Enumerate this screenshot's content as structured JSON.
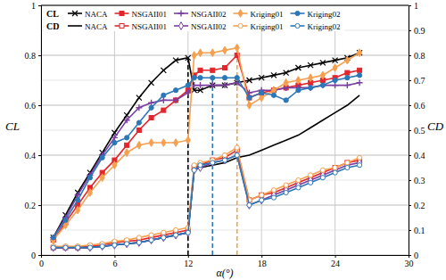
{
  "chart_data": {
    "type": "line",
    "x_label": "α(°)",
    "y_label": "CL",
    "y2_label": "CD",
    "x": [
      1,
      2,
      3,
      4,
      5,
      6,
      7,
      8,
      9,
      10,
      11,
      12,
      12.5,
      13,
      14,
      15,
      16,
      17,
      18,
      19,
      20,
      21,
      22,
      23,
      24,
      25,
      26
    ],
    "xlim": [
      0,
      30
    ],
    "xticks": [
      0,
      6,
      12,
      18,
      24,
      30
    ],
    "ylim": [
      0,
      1
    ],
    "yticks": [
      0,
      0.2,
      0.4,
      0.6,
      0.8,
      1
    ],
    "y2lim": [
      0,
      1
    ],
    "y2ticks": [
      0,
      0.1,
      0.2,
      0.3,
      0.4,
      0.5,
      0.6,
      0.7,
      0.8,
      0.9,
      1
    ],
    "grid": true,
    "legend": "top-left",
    "series": [
      {
        "name": "NACA",
        "color": "#000000",
        "marker": "x",
        "line_style": "solid",
        "values": [
          0.07,
          0.16,
          0.25,
          0.33,
          0.41,
          0.49,
          0.56,
          0.63,
          0.69,
          0.74,
          0.78,
          0.79,
          0.66,
          0.66,
          0.68,
          0.68,
          0.69,
          0.7,
          0.71,
          0.72,
          0.73,
          0.75,
          0.76,
          0.77,
          0.78,
          0.79,
          0.81
        ]
      },
      {
        "name": "NSGAII01",
        "color": "#e3262c",
        "marker": "square",
        "line_style": "solid",
        "values": [
          0.06,
          0.13,
          0.2,
          0.27,
          0.33,
          0.38,
          0.44,
          0.5,
          0.55,
          0.58,
          0.62,
          0.66,
          0.72,
          0.74,
          0.74,
          0.75,
          0.8,
          0.63,
          0.65,
          0.66,
          0.67,
          0.68,
          0.69,
          0.7,
          0.71,
          0.73,
          0.74
        ]
      },
      {
        "name": "NSGAII02",
        "color": "#7a3fa0",
        "marker": "plus",
        "line_style": "solid",
        "values": [
          0.07,
          0.15,
          0.24,
          0.32,
          0.4,
          0.47,
          0.54,
          0.59,
          0.61,
          0.62,
          0.62,
          0.65,
          0.68,
          0.68,
          0.68,
          0.68,
          0.69,
          0.65,
          0.66,
          0.66,
          0.67,
          0.67,
          0.67,
          0.68,
          0.68,
          0.68,
          0.69
        ]
      },
      {
        "name": "Kriging01",
        "color": "#f5a04f",
        "marker": "diamond",
        "line_style": "solid",
        "values": [
          0.06,
          0.12,
          0.18,
          0.25,
          0.31,
          0.36,
          0.41,
          0.44,
          0.45,
          0.45,
          0.45,
          0.46,
          0.8,
          0.81,
          0.81,
          0.82,
          0.83,
          0.6,
          0.63,
          0.66,
          0.69,
          0.7,
          0.71,
          0.72,
          0.75,
          0.78,
          0.81
        ]
      },
      {
        "name": "Kriging02",
        "color": "#2b78b8",
        "marker": "circle",
        "line_style": "solid",
        "values": [
          0.07,
          0.14,
          0.22,
          0.31,
          0.39,
          0.45,
          0.47,
          0.53,
          0.59,
          0.64,
          0.66,
          0.68,
          0.71,
          0.71,
          0.71,
          0.71,
          0.71,
          0.63,
          0.65,
          0.64,
          0.62,
          0.66,
          0.67,
          0.68,
          0.7,
          0.71,
          0.72
        ]
      },
      {
        "name": "NACA",
        "color": "#000000",
        "marker": "none",
        "line_style": "solid",
        "axis": "y2",
        "values": [
          0.03,
          0.03,
          0.03,
          0.03,
          0.035,
          0.04,
          0.045,
          0.05,
          0.06,
          0.07,
          0.08,
          0.09,
          0.34,
          0.35,
          0.36,
          0.37,
          0.39,
          0.4,
          0.42,
          0.44,
          0.46,
          0.48,
          0.51,
          0.54,
          0.57,
          0.6,
          0.64
        ]
      },
      {
        "name": "NSGAII01",
        "color": "#e3262c",
        "marker": "square-open",
        "line_style": "solid",
        "axis": "y2",
        "values": [
          0.03,
          0.03,
          0.03,
          0.035,
          0.04,
          0.05,
          0.055,
          0.06,
          0.07,
          0.08,
          0.09,
          0.1,
          0.35,
          0.36,
          0.38,
          0.39,
          0.42,
          0.22,
          0.24,
          0.25,
          0.27,
          0.29,
          0.31,
          0.33,
          0.35,
          0.37,
          0.38
        ]
      },
      {
        "name": "NSGAII02",
        "color": "#7a3fa0",
        "marker": "diamond-open",
        "line_style": "solid",
        "axis": "y2",
        "values": [
          0.03,
          0.03,
          0.03,
          0.03,
          0.035,
          0.04,
          0.045,
          0.05,
          0.06,
          0.07,
          0.08,
          0.09,
          0.34,
          0.35,
          0.37,
          0.38,
          0.4,
          0.2,
          0.22,
          0.24,
          0.26,
          0.28,
          0.3,
          0.32,
          0.34,
          0.36,
          0.37
        ]
      },
      {
        "name": "Kriging01",
        "color": "#f5a04f",
        "marker": "circle-open",
        "line_style": "solid",
        "axis": "y2",
        "values": [
          0.035,
          0.035,
          0.035,
          0.04,
          0.045,
          0.055,
          0.06,
          0.07,
          0.08,
          0.09,
          0.1,
          0.11,
          0.36,
          0.37,
          0.38,
          0.4,
          0.43,
          0.22,
          0.24,
          0.26,
          0.28,
          0.3,
          0.32,
          0.34,
          0.35,
          0.37,
          0.39
        ]
      },
      {
        "name": "Kriging02",
        "color": "#2b78b8",
        "marker": "circle-open",
        "line_style": "solid",
        "axis": "y2",
        "values": [
          0.03,
          0.03,
          0.03,
          0.03,
          0.035,
          0.04,
          0.045,
          0.05,
          0.06,
          0.07,
          0.08,
          0.09,
          0.34,
          0.36,
          0.37,
          0.38,
          0.4,
          0.2,
          0.22,
          0.23,
          0.25,
          0.27,
          0.29,
          0.31,
          0.33,
          0.35,
          0.36
        ]
      }
    ],
    "reference_lines": [
      {
        "x": 12,
        "y": 0.79,
        "color": "#000000",
        "line_style": "dashed"
      },
      {
        "x": 14,
        "y": 0.71,
        "color": "#2b78b8",
        "line_style": "dashed"
      },
      {
        "x": 16,
        "y": 0.83,
        "color": "#f5a04f",
        "line_style": "dashed"
      }
    ]
  }
}
